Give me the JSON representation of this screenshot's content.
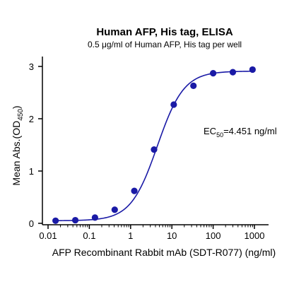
{
  "chart_data": {
    "type": "scatter",
    "title": "Human AFP, His tag, ELISA",
    "subtitle": "0.5 μg/ml of Human AFP, His tag per well",
    "xlabel": "AFP Recombinant Rabbit mAb (SDT-R077) (ng/ml)",
    "ylabel": "Mean Abs.(OD450)",
    "ylabel_main": "Mean Abs.(OD",
    "ylabel_sub": "450",
    "ylabel_close": ")",
    "x_scale": "log",
    "xlim": [
      0.01,
      1000
    ],
    "ylim": [
      0,
      3
    ],
    "x_ticks": [
      0.01,
      0.1,
      1,
      10,
      100,
      1000
    ],
    "x_tick_labels": [
      "0.01",
      "0.1",
      "1",
      "10",
      "100",
      "1000"
    ],
    "y_ticks": [
      0,
      1,
      2,
      3
    ],
    "y_tick_labels": [
      "0",
      "1",
      "2",
      "3"
    ],
    "grid": false,
    "color": "#1a1aa6",
    "series": [
      {
        "x": [
          0.0152,
          0.0457,
          0.137,
          0.412,
          1.23,
          3.7,
          11.1,
          33.3,
          100,
          300,
          900
        ],
        "y": [
          0.05,
          0.06,
          0.11,
          0.26,
          0.62,
          1.41,
          2.27,
          2.63,
          2.87,
          2.89,
          2.94
        ]
      }
    ],
    "fit": {
      "bottom": 0.05,
      "top": 2.91,
      "ec50": 4.451,
      "hill": 1.35
    },
    "annotation": {
      "main": "EC",
      "sub": "50",
      "rest": "=4.451 ng/ml"
    }
  }
}
